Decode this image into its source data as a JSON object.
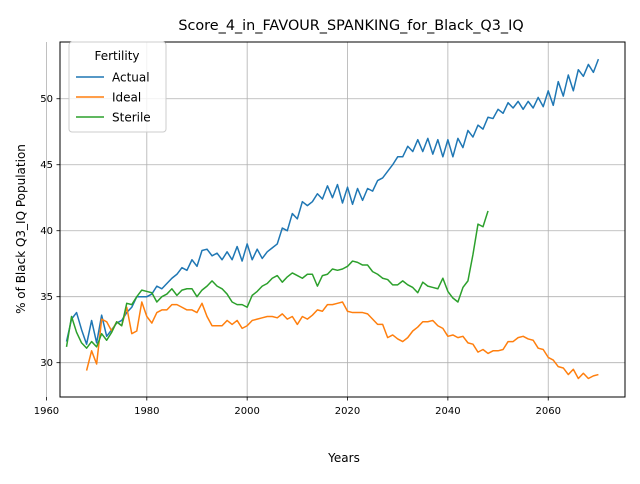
{
  "chart_data": {
    "type": "line",
    "title": "Score_4_in_FAVOUR_SPANKING_for_Black_Q3_IQ",
    "xlabel": "Years",
    "ylabel": "% of Black Q3_IQ Population",
    "xlim": [
      1962.7,
      2075.3
    ],
    "ylim": [
      27.4,
      54.3
    ],
    "x_ticks": [
      1960,
      1980,
      2000,
      2020,
      2040,
      2060
    ],
    "y_ticks": [
      30,
      35,
      40,
      45,
      50
    ],
    "grid": true,
    "legend": {
      "title": "Fertility",
      "position": "upper left"
    },
    "series": [
      {
        "name": "Actual",
        "color": "#1f77b4",
        "x": [
          1964,
          1965,
          1966,
          1967,
          1968,
          1969,
          1970,
          1971,
          1972,
          1973,
          1974,
          1975,
          1976,
          1977,
          1978,
          1979,
          1980,
          1981,
          1982,
          1983,
          1984,
          1985,
          1986,
          1987,
          1988,
          1989,
          1990,
          1991,
          1992,
          1993,
          1994,
          1995,
          1996,
          1997,
          1998,
          1999,
          2000,
          2001,
          2002,
          2003,
          2004,
          2005,
          2006,
          2007,
          2008,
          2009,
          2010,
          2011,
          2012,
          2013,
          2014,
          2015,
          2016,
          2017,
          2018,
          2019,
          2020,
          2021,
          2022,
          2023,
          2024,
          2025,
          2026,
          2027,
          2028,
          2029,
          2030,
          2031,
          2032,
          2033,
          2034,
          2035,
          2036,
          2037,
          2038,
          2039,
          2040,
          2041,
          2042,
          2043,
          2044,
          2045,
          2046,
          2047,
          2048,
          2049,
          2050,
          2051,
          2052,
          2053,
          2054,
          2055,
          2056,
          2057,
          2058,
          2059,
          2060,
          2061,
          2062,
          2063,
          2064,
          2065,
          2066,
          2067,
          2068,
          2069,
          2070
        ],
        "values": [
          31.6,
          33.3,
          33.8,
          32.5,
          31.4,
          33.2,
          31.5,
          33.6,
          32.0,
          32.5,
          33.0,
          33.2,
          33.8,
          34.2,
          35.0,
          35.0,
          35.0,
          35.2,
          35.8,
          35.6,
          36.0,
          36.4,
          36.7,
          37.2,
          37.0,
          37.8,
          37.3,
          38.5,
          38.6,
          38.1,
          38.3,
          37.8,
          38.4,
          37.8,
          38.8,
          37.7,
          39.0,
          37.8,
          38.6,
          37.9,
          38.4,
          38.7,
          39.0,
          40.2,
          40.0,
          41.3,
          40.9,
          42.2,
          41.9,
          42.2,
          42.8,
          42.4,
          43.4,
          42.5,
          43.5,
          42.1,
          43.3,
          42.0,
          43.2,
          42.3,
          43.2,
          43.0,
          43.8,
          44.0,
          44.5,
          45.0,
          45.6,
          45.6,
          46.4,
          46.0,
          46.9,
          46.0,
          47.0,
          45.8,
          46.9,
          45.6,
          46.9,
          45.6,
          47.0,
          46.3,
          47.6,
          47.1,
          48.0,
          47.7,
          48.6,
          48.5,
          49.2,
          48.9,
          49.7,
          49.3,
          49.8,
          49.2,
          49.8,
          49.3,
          50.1,
          49.4,
          50.6,
          49.5,
          51.3,
          50.2,
          51.8,
          50.6,
          52.2,
          51.7,
          52.6,
          52.0,
          53.0
        ]
      },
      {
        "name": "Ideal",
        "color": "#ff7f0e",
        "x": [
          1968,
          1969,
          1970,
          1971,
          1972,
          1973,
          1974,
          1975,
          1976,
          1977,
          1978,
          1979,
          1980,
          1981,
          1982,
          1983,
          1984,
          1985,
          1986,
          1987,
          1988,
          1989,
          1990,
          1991,
          1992,
          1993,
          1994,
          1995,
          1996,
          1997,
          1998,
          1999,
          2000,
          2001,
          2002,
          2003,
          2004,
          2005,
          2006,
          2007,
          2008,
          2009,
          2010,
          2011,
          2012,
          2013,
          2014,
          2015,
          2016,
          2017,
          2018,
          2019,
          2020,
          2021,
          2022,
          2023,
          2024,
          2025,
          2026,
          2027,
          2028,
          2029,
          2030,
          2031,
          2032,
          2033,
          2034,
          2035,
          2036,
          2037,
          2038,
          2039,
          2040,
          2041,
          2042,
          2043,
          2044,
          2045,
          2046,
          2047,
          2048,
          2049,
          2050,
          2051,
          2052,
          2053,
          2054,
          2055,
          2056,
          2057,
          2058,
          2059,
          2060,
          2061,
          2062,
          2063,
          2064,
          2065,
          2066,
          2067,
          2068,
          2069,
          2070
        ],
        "values": [
          29.4,
          30.9,
          29.9,
          33.3,
          33.1,
          32.4,
          33.1,
          32.8,
          34.2,
          32.2,
          32.4,
          34.6,
          33.5,
          33.0,
          33.8,
          34.0,
          34.0,
          34.4,
          34.4,
          34.2,
          34.0,
          34.0,
          33.8,
          34.5,
          33.5,
          32.8,
          32.8,
          32.8,
          33.2,
          32.9,
          33.2,
          32.6,
          32.8,
          33.2,
          33.3,
          33.4,
          33.5,
          33.5,
          33.4,
          33.7,
          33.3,
          33.5,
          32.9,
          33.5,
          33.3,
          33.6,
          34.0,
          33.9,
          34.4,
          34.4,
          34.5,
          34.6,
          33.9,
          33.8,
          33.8,
          33.8,
          33.7,
          33.3,
          32.9,
          32.9,
          31.9,
          32.1,
          31.8,
          31.6,
          31.9,
          32.4,
          32.7,
          33.1,
          33.1,
          33.2,
          32.8,
          32.6,
          32.0,
          32.1,
          31.9,
          32.0,
          31.5,
          31.4,
          30.8,
          31.0,
          30.7,
          30.9,
          30.9,
          31.0,
          31.6,
          31.6,
          31.9,
          32.0,
          31.8,
          31.7,
          31.1,
          31.0,
          30.4,
          30.2,
          29.7,
          29.6,
          29.1,
          29.5,
          28.8,
          29.2,
          28.8,
          29.0,
          29.1
        ]
      },
      {
        "name": "Sterile",
        "color": "#2ca02c",
        "x": [
          1964,
          1965,
          1966,
          1967,
          1968,
          1969,
          1970,
          1971,
          1972,
          1973,
          1974,
          1975,
          1976,
          1977,
          1978,
          1979,
          1980,
          1981,
          1982,
          1983,
          1984,
          1985,
          1986,
          1987,
          1988,
          1989,
          1990,
          1991,
          1992,
          1993,
          1994,
          1995,
          1996,
          1997,
          1998,
          1999,
          2000,
          2001,
          2002,
          2003,
          2004,
          2005,
          2006,
          2007,
          2008,
          2009,
          2010,
          2011,
          2012,
          2013,
          2014,
          2015,
          2016,
          2017,
          2018,
          2019,
          2020,
          2021,
          2022,
          2023,
          2024,
          2025,
          2026,
          2027,
          2028,
          2029,
          2030,
          2031,
          2032,
          2033,
          2034,
          2035,
          2036,
          2037,
          2038,
          2039,
          2040,
          2041,
          2042,
          2043,
          2044,
          2045,
          2046,
          2047,
          2048
        ],
        "values": [
          31.2,
          33.5,
          32.3,
          31.5,
          31.1,
          31.6,
          31.2,
          32.2,
          31.7,
          32.3,
          33.1,
          32.8,
          34.5,
          34.4,
          35.0,
          35.5,
          35.4,
          35.3,
          34.6,
          35.0,
          35.2,
          35.6,
          35.1,
          35.5,
          35.6,
          35.6,
          35.0,
          35.5,
          35.8,
          36.2,
          35.8,
          35.6,
          35.2,
          34.6,
          34.4,
          34.4,
          34.2,
          35.1,
          35.4,
          35.8,
          36.0,
          36.4,
          36.6,
          36.1,
          36.5,
          36.8,
          36.6,
          36.4,
          36.7,
          36.7,
          35.8,
          36.6,
          36.7,
          37.1,
          37.0,
          37.1,
          37.3,
          37.7,
          37.6,
          37.4,
          37.4,
          36.9,
          36.7,
          36.4,
          36.3,
          35.9,
          35.9,
          36.2,
          35.9,
          35.7,
          35.3,
          36.1,
          35.8,
          35.7,
          35.6,
          36.4,
          35.4,
          34.9,
          34.6,
          35.7,
          36.2,
          38.2,
          40.5,
          40.3,
          41.5
        ]
      }
    ]
  }
}
